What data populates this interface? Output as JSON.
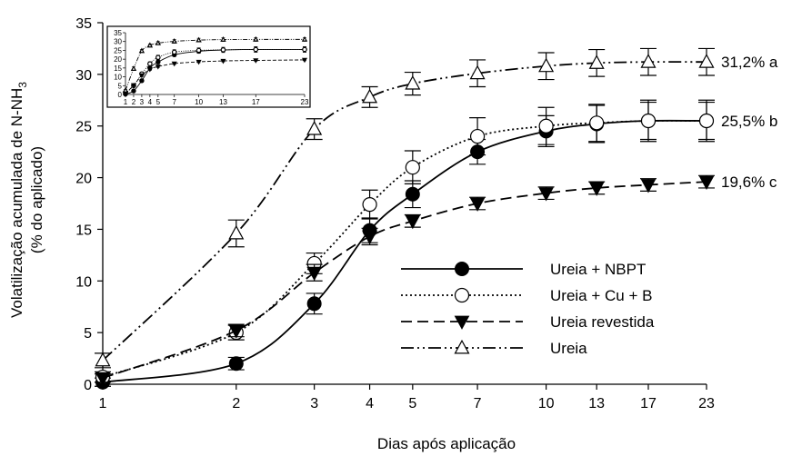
{
  "chart_data": {
    "type": "line",
    "xlabel": "Dias após aplicação",
    "ylabel_line1": "Volatilização acumulada de N-NH",
    "ylabel_sub": "3",
    "ylabel_line2": "(% do aplicado)",
    "x": [
      1,
      2,
      3,
      4,
      5,
      7,
      10,
      13,
      17,
      23
    ],
    "x_tick_labels": [
      "1",
      "2",
      "3",
      "4",
      "5",
      "7",
      "10",
      "13",
      "17",
      "23"
    ],
    "x_scale": "log",
    "ylim": [
      0,
      35
    ],
    "y_ticks": [
      0,
      5,
      10,
      15,
      20,
      25,
      30,
      35
    ],
    "series": [
      {
        "name": "Ureia + NBPT",
        "marker": "filled-circle",
        "line": "solid",
        "values": [
          0.2,
          2.0,
          7.8,
          14.9,
          18.4,
          22.5,
          24.5,
          25.2,
          25.5,
          25.5
        ],
        "errors": [
          0.4,
          0.6,
          1.0,
          1.2,
          1.3,
          1.2,
          1.5,
          1.8,
          2.0,
          2.0
        ]
      },
      {
        "name": "Ureia + Cu + B",
        "marker": "open-circle",
        "line": "dotted",
        "values": [
          0.7,
          5.0,
          11.7,
          17.4,
          21.0,
          24.0,
          25.0,
          25.3,
          25.5,
          25.5
        ],
        "errors": [
          0.5,
          0.7,
          1.0,
          1.4,
          1.6,
          1.8,
          1.8,
          1.8,
          1.8,
          1.8
        ]
      },
      {
        "name": "Ureia revestida",
        "marker": "filled-triangle-down",
        "line": "dashed",
        "values": [
          0.6,
          5.2,
          10.8,
          14.3,
          15.8,
          17.5,
          18.5,
          19.0,
          19.3,
          19.6
        ],
        "errors": [
          0.4,
          0.6,
          0.8,
          0.8,
          0.6,
          0.6,
          0.6,
          0.6,
          0.6,
          0.6
        ]
      },
      {
        "name": "Ureia",
        "marker": "open-triangle-up",
        "line": "dash-dot-dot",
        "values": [
          2.3,
          14.6,
          24.7,
          27.8,
          29.1,
          30.1,
          30.8,
          31.1,
          31.2,
          31.2
        ],
        "errors": [
          0.7,
          1.3,
          1.0,
          1.0,
          1.1,
          1.3,
          1.3,
          1.3,
          1.3,
          1.3
        ]
      }
    ],
    "end_labels": [
      "31,2% a",
      "25,5% b",
      "19,6% c"
    ],
    "end_label_values": [
      31.2,
      25.5,
      19.6
    ],
    "legend_position": "lower-right",
    "inset": {
      "x_scale": "linear",
      "xlim": [
        1,
        23
      ],
      "ylim": [
        0,
        35
      ],
      "x_tick_labels": [
        "1",
        "2",
        "3",
        "4",
        "5",
        "7",
        "10",
        "13",
        "17",
        "23"
      ],
      "y_tick_labels": [
        "0",
        "5",
        "10",
        "15",
        "20",
        "25",
        "30",
        "35"
      ]
    }
  }
}
